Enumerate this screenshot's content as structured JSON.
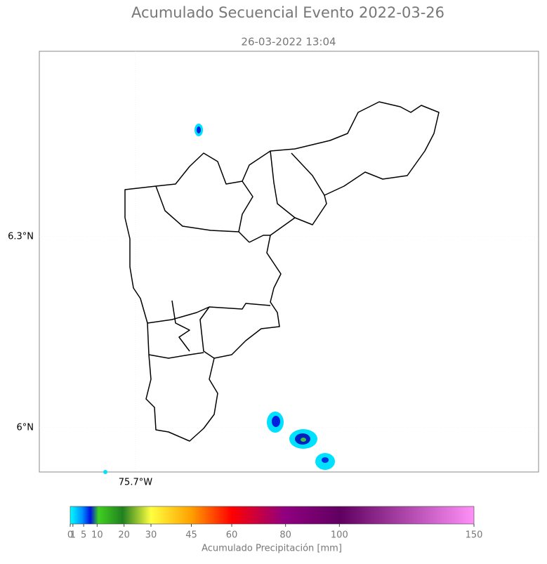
{
  "chart_data": {
    "type": "map",
    "title": "Acumulado Secuencial Evento 2022-03-26",
    "subtitle": "26-03-2022 13:04",
    "xlim": [
      -75.851,
      -75.067
    ],
    "ylim": [
      5.9305,
      6.591
    ],
    "xticks": [
      {
        "value": -75.7,
        "label": "75.7°W"
      }
    ],
    "yticks": [
      {
        "value": 6.0,
        "label": "6°N"
      },
      {
        "value": 6.3,
        "label": "6.3°N"
      }
    ],
    "colorbar": {
      "label": "Acumulado Precipitación [mm]",
      "lim": [
        0,
        150
      ],
      "ticks": [
        0,
        1,
        5,
        10,
        20,
        30,
        45,
        60,
        80,
        100,
        150
      ]
    }
  }
}
